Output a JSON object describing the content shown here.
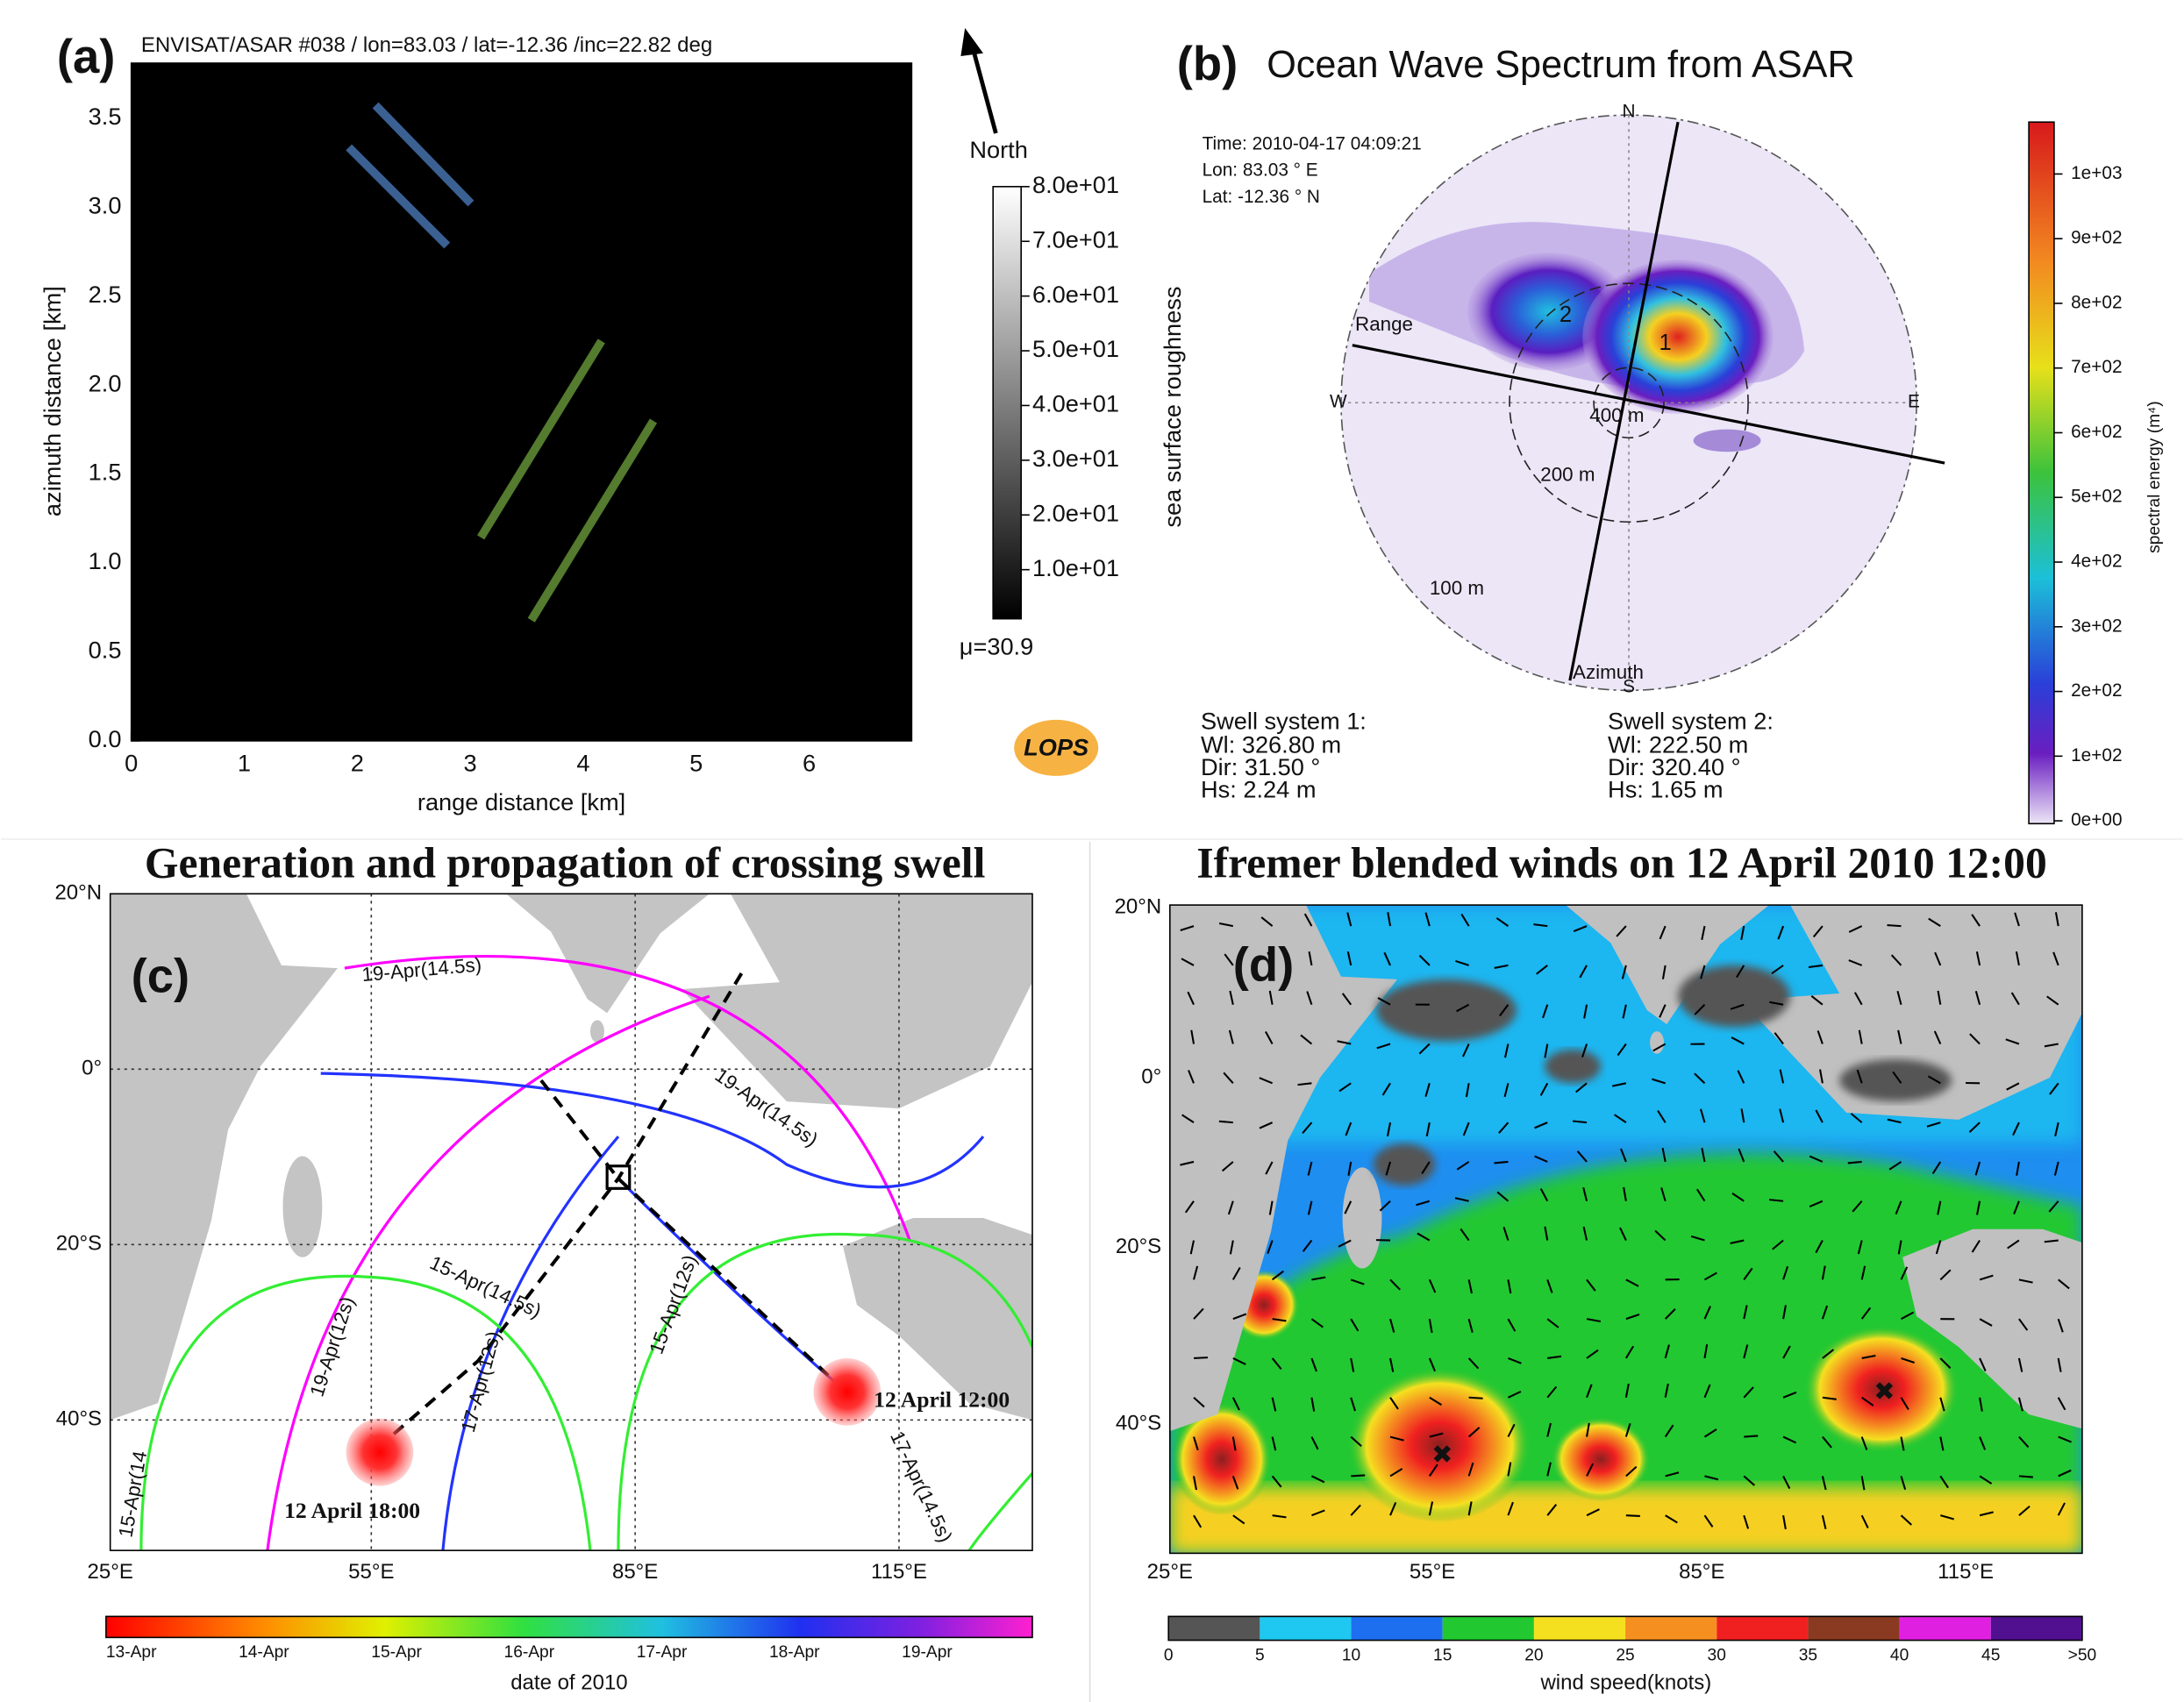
{
  "panel_a": {
    "label": "(a)",
    "title": "ENVISAT/ASAR #038 / lon=83.03 / lat=-12.36 /inc=22.82 deg",
    "xlabel": "range distance [km]",
    "ylabel": "azimuth distance [km]",
    "xticks": [
      "0",
      "1",
      "2",
      "3",
      "4",
      "5",
      "6"
    ],
    "yticks": [
      "0.0",
      "0.5",
      "1.0",
      "1.5",
      "2.0",
      "2.5",
      "3.0",
      "3.5"
    ],
    "north": "North",
    "colorbar_label": "sea surface roughness",
    "colorbar_ticks": [
      "8.0e+01",
      "7.0e+01",
      "6.0e+01",
      "5.0e+01",
      "4.0e+01",
      "3.0e+01",
      "2.0e+01",
      "1.0e+01"
    ],
    "mean": "μ=30.9",
    "logo": "LOPS"
  },
  "panel_b": {
    "label": "(b)",
    "title": "Ocean Wave Spectrum from ASAR",
    "info": [
      "Time: 2010-04-17 04:09:21",
      "Lon: 83.03 ° E",
      "Lat: -12.36 ° N"
    ],
    "compass": [
      "N",
      "E",
      "S",
      "W"
    ],
    "axes": [
      "Range",
      "Azimuth"
    ],
    "rings": [
      "400 m",
      "200 m",
      "100 m"
    ],
    "peaks": [
      "1",
      "2"
    ],
    "swell": [
      {
        "title": "Swell system 1:",
        "lines": [
          "Wl: 326.80 m",
          "Dir: 31.50 °",
          "Hs: 2.24 m"
        ]
      },
      {
        "title": "Swell system 2:",
        "lines": [
          "Wl: 222.50 m",
          "Dir: 320.40 °",
          "Hs: 1.65 m"
        ]
      }
    ],
    "colorbar_label": "spectral energy (m⁴)",
    "colorbar_ticks": [
      "1e+03",
      "9e+02",
      "8e+02",
      "7e+02",
      "6e+02",
      "5e+02",
      "4e+02",
      "3e+02",
      "2e+02",
      "1e+02",
      "0e+00"
    ]
  },
  "panel_c": {
    "label": "(c)",
    "title": "Generation and propagation of crossing swell",
    "lat_ticks": [
      "20°N",
      "0°",
      "20°S",
      "40°S"
    ],
    "lon_ticks": [
      "25°E",
      "55°E",
      "85°E",
      "115°E"
    ],
    "contour_labels": [
      "19-Apr(14.5s)",
      "19-Apr(14.5s)",
      "15-Apr(14.5s)",
      "15-Apr(12s)",
      "19-Apr(12s)",
      "17-Apr(12s)",
      "17-Apr(14.5s)",
      "15-Apr(14"
    ],
    "events": [
      "12 April 12:00",
      "12 April 18:00"
    ],
    "colorbar_ticks": [
      "13-Apr",
      "14-Apr",
      "15-Apr",
      "16-Apr",
      "17-Apr",
      "18-Apr",
      "19-Apr"
    ],
    "colorbar_label": "date of 2010"
  },
  "panel_d": {
    "label": "(d)",
    "title": "Ifremer blended winds on 12 April 2010 12:00",
    "lat_ticks": [
      "20°N",
      "0°",
      "20°S",
      "40°S"
    ],
    "lon_ticks": [
      "25°E",
      "55°E",
      "85°E",
      "115°E"
    ],
    "colorbar_ticks": [
      "0",
      "5",
      "10",
      "15",
      "20",
      "25",
      "30",
      "35",
      "40",
      "45",
      ">50"
    ],
    "colorbar_label": "wind speed(knots)"
  }
}
